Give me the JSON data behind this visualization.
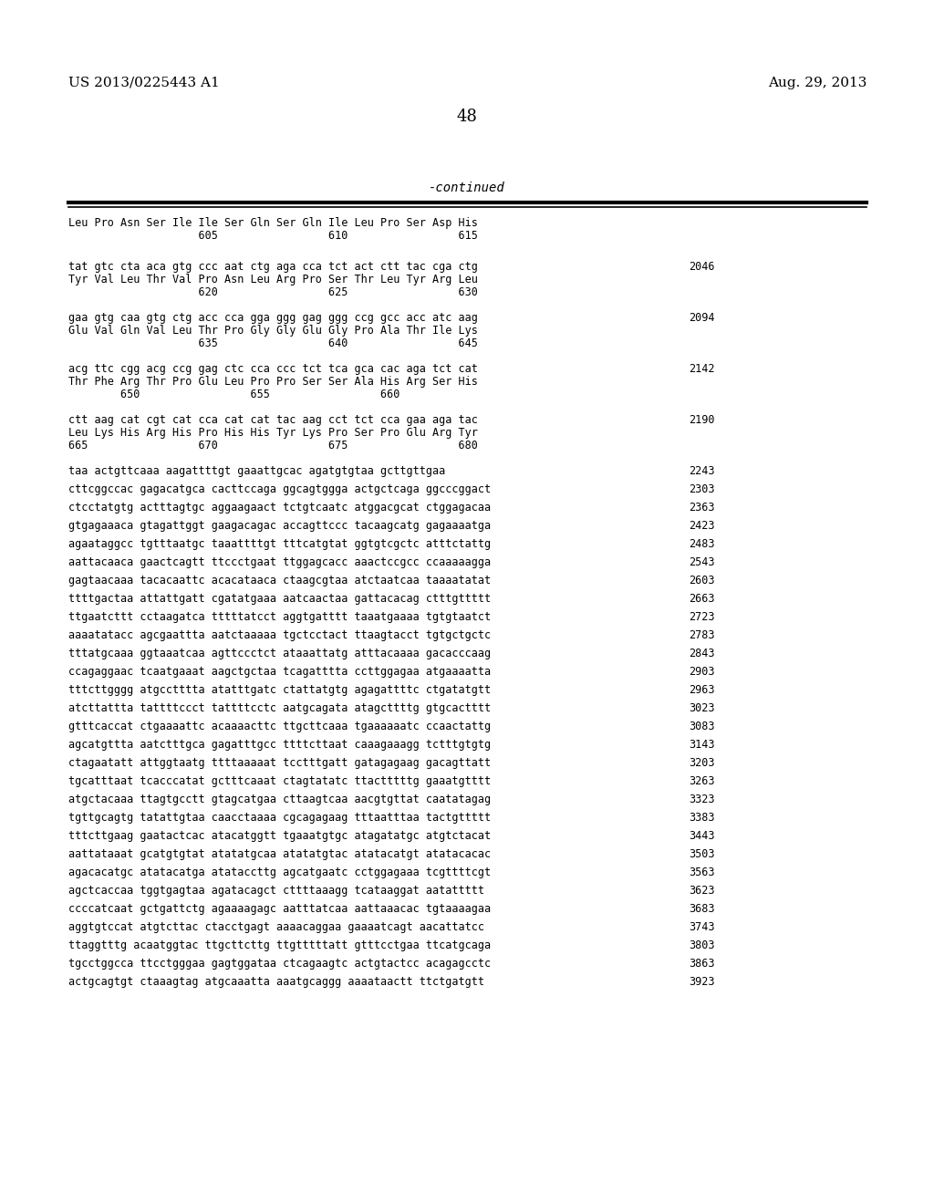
{
  "header_left": "US 2013/0225443 A1",
  "header_right": "Aug. 29, 2013",
  "page_number": "48",
  "continued_label": "-continued",
  "background_color": "#ffffff",
  "text_color": "#000000",
  "aa_block_line1": "Leu Pro Asn Ser Ile Ile Ser Gln Ser Gln Ile Leu Pro Ser Asp His",
  "aa_block_line2": "                    605                 610                 615",
  "dna_blocks": [
    {
      "dna": "tat gtc cta aca gtg ccc aat ctg aga cca tct act ctt tac cga ctg",
      "aa": "Tyr Val Leu Thr Val Pro Asn Leu Arg Pro Ser Thr Leu Tyr Arg Leu",
      "nums": "                    620                 625                 630",
      "num": "2046"
    },
    {
      "dna": "gaa gtg caa gtg ctg acc cca gga ggg gag ggg ccg gcc acc atc aag",
      "aa": "Glu Val Gln Val Leu Thr Pro Gly Gly Glu Gly Pro Ala Thr Ile Lys",
      "nums": "                    635                 640                 645",
      "num": "2094"
    },
    {
      "dna": "acg ttc cgg acg ccg gag ctc cca ccc tct tca gca cac aga tct cat",
      "aa": "Thr Phe Arg Thr Pro Glu Leu Pro Pro Ser Ser Ala His Arg Ser His",
      "nums": "        650                 655                 660",
      "num": "2142"
    },
    {
      "dna": "ctt aag cat cgt cat cca cat cat tac aag cct tct cca gaa aga tac",
      "aa": "Leu Lys His Arg His Pro His His Tyr Lys Pro Ser Pro Glu Arg Tyr",
      "nums": "665                 670                 675                 680",
      "num": "2190"
    }
  ],
  "single_lines": [
    [
      "taa actgttcaaa aagattttgt gaaattgcac agatgtgtaa gcttgttgaa",
      "2243"
    ],
    [
      "cttcggccac gagacatgca cacttccaga ggcagtggga actgctcaga ggcccggact",
      "2303"
    ],
    [
      "ctcctatgtg actttagtgc aggaagaact tctgtcaatc atggacgcat ctggagacaa",
      "2363"
    ],
    [
      "gtgagaaaca gtagattggt gaagacagac accagttccc tacaagcatg gagaaaatga",
      "2423"
    ],
    [
      "agaataggcc tgtttaatgc taaattttgt tttcatgtat ggtgtcgctc atttctattg",
      "2483"
    ],
    [
      "aattacaaca gaactcagtt ttccctgaat ttggagcacc aaactccgcc ccaaaaagga",
      "2543"
    ],
    [
      "gagtaacaaa tacacaattc acacataaca ctaagcgtaa atctaatcaa taaaatatat",
      "2603"
    ],
    [
      "ttttgactaa attattgatt cgatatgaaa aatcaactaa gattacacag ctttgttttt",
      "2663"
    ],
    [
      "ttgaatcttt cctaagatca tttttatcct aggtgatttt taaatgaaaa tgtgtaatct",
      "2723"
    ],
    [
      "aaaatatacc agcgaattta aatctaaaaa tgctcctact ttaagtacct tgtgctgctc",
      "2783"
    ],
    [
      "tttatgcaaa ggtaaatcaa agttccctct ataaattatg atttacaaaa gacacccaag",
      "2843"
    ],
    [
      "ccagaggaac tcaatgaaat aagctgctaa tcagatttta ccttggagaa atgaaaatta",
      "2903"
    ],
    [
      "tttcttgggg atgcctttta atatttgatc ctattatgtg agagattttc ctgatatgtt",
      "2963"
    ],
    [
      "atcttattta tattttccct tattttcctc aatgcagata atagcttttg gtgcactttt",
      "3023"
    ],
    [
      "gtttcaccat ctgaaaattc acaaaacttc ttgcttcaaa tgaaaaaatc ccaactattg",
      "3083"
    ],
    [
      "agcatgttta aatctttgca gagatttgcc ttttcttaat caaagaaagg tctttgtgtg",
      "3143"
    ],
    [
      "ctagaatatt attggtaatg ttttaaaaat tcctttgatt gatagagaag gacagttatt",
      "3203"
    ],
    [
      "tgcatttaat tcacccatat gctttcaaat ctagtatatc ttactttttg gaaatgtttt",
      "3263"
    ],
    [
      "atgctacaaa ttagtgcctt gtagcatgaa cttaagtcaa aacgtgttat caatatagag",
      "3323"
    ],
    [
      "tgttgcagtg tatattgtaa caacctaaaa cgcagagaag tttaatttaa tactgttttt",
      "3383"
    ],
    [
      "tttcttgaag gaatactcac atacatggtt tgaaatgtgc atagatatgc atgtctacat",
      "3443"
    ],
    [
      "aattataaat gcatgtgtat atatatgcaa atatatgtac atatacatgt atatacacac",
      "3503"
    ],
    [
      "agacacatgc atatacatga atataccttg agcatgaatc cctggagaaa tcgttttcgt",
      "3563"
    ],
    [
      "agctcaccaa tggtgagtaa agatacagct cttttaaagg tcataaggat aatattttt",
      "3623"
    ],
    [
      "ccccatcaat gctgattctg agaaaagagc aatttatcaa aattaaacac tgtaaaagaa",
      "3683"
    ],
    [
      "aggtgtccat atgtcttac ctacctgagt aaaacaggaa gaaaatcagt aacattatcc",
      "3743"
    ],
    [
      "ttaggtttg acaatggtac ttgcttcttg ttgtttttatt gtttcctgaa ttcatgcaga",
      "3803"
    ],
    [
      "tgcctggcca ttcctgggaa gagtggataa ctcagaagtc actgtactcc acagagcctc",
      "3863"
    ],
    [
      "actgcagtgt ctaaagtag atgcaaatta aaatgcaggg aaaataactt ttctgatgtt",
      "3923"
    ]
  ]
}
